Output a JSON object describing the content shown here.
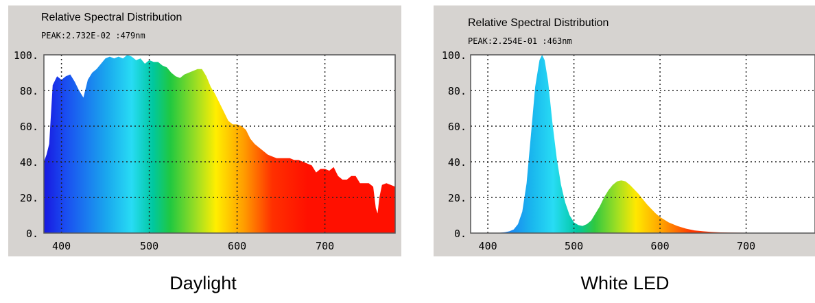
{
  "chart_data": [
    {
      "type": "area",
      "title": "Relative Spectral Distribution",
      "subtitle": "PEAK:2.732E-02 :479nm",
      "caption": "Daylight",
      "xlim": [
        380,
        780
      ],
      "ylim": [
        0,
        100
      ],
      "xticks": [
        400,
        500,
        600,
        700
      ],
      "yticks": [
        0,
        20,
        40,
        60,
        80,
        100
      ],
      "xtick_labels": [
        "400",
        "500",
        "600",
        "700"
      ],
      "ytick_labels": [
        "0.",
        "20.",
        "40.",
        "60.",
        "80.",
        "100."
      ],
      "grid": true,
      "x": [
        380,
        383,
        386,
        390,
        395,
        400,
        405,
        410,
        415,
        420,
        425,
        430,
        435,
        440,
        445,
        450,
        455,
        460,
        465,
        470,
        475,
        480,
        485,
        490,
        495,
        500,
        505,
        510,
        515,
        520,
        525,
        530,
        535,
        540,
        545,
        550,
        555,
        560,
        565,
        570,
        575,
        580,
        585,
        590,
        595,
        600,
        605,
        610,
        615,
        620,
        625,
        630,
        635,
        640,
        645,
        650,
        655,
        660,
        665,
        670,
        675,
        680,
        685,
        690,
        695,
        700,
        705,
        710,
        715,
        720,
        725,
        730,
        735,
        740,
        745,
        750,
        755,
        758,
        760,
        762,
        765,
        770,
        775,
        780
      ],
      "values": [
        40,
        44,
        50,
        83,
        88,
        86,
        88,
        89,
        85,
        80,
        76,
        86,
        90,
        92,
        95,
        98,
        99,
        98,
        99,
        98,
        100,
        99,
        97,
        98,
        95,
        97,
        96,
        96,
        94,
        93,
        90,
        88,
        87,
        89,
        90,
        91,
        92,
        92,
        88,
        82,
        78,
        73,
        68,
        63,
        61,
        61,
        60,
        58,
        53,
        50,
        48,
        46,
        44,
        43,
        42,
        42,
        42,
        42,
        41,
        41,
        40,
        39,
        38,
        34,
        36,
        36,
        35,
        37,
        32,
        30,
        30,
        32,
        32,
        28,
        28,
        28,
        26,
        14,
        11,
        20,
        27,
        28,
        27,
        26
      ]
    },
    {
      "type": "area",
      "title": "Relative Spectral Distribution",
      "subtitle": "PEAK:2.254E-01 :463nm",
      "caption": "White LED",
      "xlim": [
        380,
        780
      ],
      "ylim": [
        0,
        100
      ],
      "xticks": [
        400,
        500,
        600,
        700
      ],
      "yticks": [
        0,
        20,
        40,
        60,
        80,
        100
      ],
      "xtick_labels": [
        "400",
        "500",
        "600",
        "700"
      ],
      "ytick_labels": [
        "0.",
        "20.",
        "40.",
        "60.",
        "80.",
        "100."
      ],
      "grid": true,
      "x": [
        380,
        400,
        410,
        420,
        425,
        430,
        435,
        440,
        445,
        450,
        455,
        460,
        463,
        466,
        470,
        475,
        480,
        485,
        490,
        495,
        500,
        505,
        510,
        515,
        520,
        525,
        530,
        535,
        540,
        545,
        550,
        555,
        560,
        565,
        570,
        575,
        580,
        585,
        590,
        595,
        600,
        610,
        620,
        630,
        640,
        650,
        660,
        670,
        680,
        700,
        720,
        740,
        760,
        780
      ],
      "values": [
        0,
        0,
        0,
        0.5,
        1,
        2,
        5,
        12,
        28,
        55,
        82,
        97,
        100,
        97,
        85,
        62,
        42,
        27,
        17,
        10,
        6,
        4.5,
        4,
        5,
        7,
        11,
        15,
        20,
        24,
        27,
        29,
        29.5,
        29,
        27,
        24.5,
        22,
        19,
        16,
        13.5,
        11,
        9,
        6,
        4,
        2.5,
        1.5,
        1,
        0.6,
        0.4,
        0.3,
        0.2,
        0.1,
        0,
        0,
        0
      ]
    }
  ]
}
